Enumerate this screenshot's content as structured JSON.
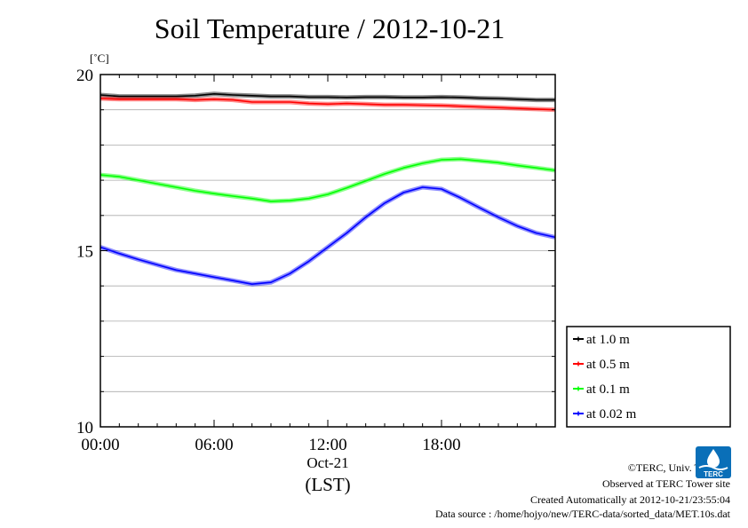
{
  "chart_data": {
    "type": "line",
    "title": "Soil Temperature / 2012-10-21",
    "ylabel": "[˚C]",
    "ylim": [
      10,
      20
    ],
    "yticks": [
      10,
      15,
      20
    ],
    "xlim": [
      0,
      24
    ],
    "xtick_labels": [
      "00:00",
      "06:00",
      "12:00",
      "18:00"
    ],
    "xtick_values": [
      0,
      6,
      12,
      18
    ],
    "x_date_label": "Oct-21",
    "x_unit_label": "(LST)",
    "grid": true,
    "legend_position": "bottom-right",
    "series": [
      {
        "name": "at 1.0 m",
        "color": "#000000",
        "x": [
          0,
          1,
          2,
          3,
          4,
          5,
          6,
          7,
          8,
          9,
          10,
          11,
          12,
          13,
          14,
          15,
          16,
          17,
          18,
          19,
          20,
          21,
          22,
          23,
          24
        ],
        "values": [
          19.42,
          19.38,
          19.38,
          19.38,
          19.38,
          19.4,
          19.45,
          19.42,
          19.4,
          19.38,
          19.38,
          19.36,
          19.36,
          19.35,
          19.36,
          19.36,
          19.35,
          19.35,
          19.36,
          19.35,
          19.33,
          19.32,
          19.3,
          19.28,
          19.28
        ]
      },
      {
        "name": "at 0.5 m",
        "color": "#ff0000",
        "x": [
          0,
          1,
          2,
          3,
          4,
          5,
          6,
          7,
          8,
          9,
          10,
          11,
          12,
          13,
          14,
          15,
          16,
          17,
          18,
          19,
          20,
          21,
          22,
          23,
          24
        ],
        "values": [
          19.32,
          19.3,
          19.3,
          19.3,
          19.3,
          19.28,
          19.3,
          19.28,
          19.22,
          19.22,
          19.22,
          19.18,
          19.16,
          19.18,
          19.16,
          19.14,
          19.14,
          19.13,
          19.12,
          19.1,
          19.08,
          19.06,
          19.04,
          19.02,
          19.0
        ]
      },
      {
        "name": "at 0.1 m",
        "color": "#00ff00",
        "x": [
          0,
          1,
          2,
          3,
          4,
          5,
          6,
          7,
          8,
          9,
          10,
          11,
          12,
          13,
          14,
          15,
          16,
          17,
          18,
          19,
          20,
          21,
          22,
          23,
          24
        ],
        "values": [
          17.15,
          17.1,
          17.0,
          16.9,
          16.8,
          16.7,
          16.62,
          16.55,
          16.48,
          16.4,
          16.42,
          16.48,
          16.6,
          16.78,
          16.98,
          17.18,
          17.35,
          17.48,
          17.58,
          17.6,
          17.55,
          17.5,
          17.42,
          17.35,
          17.28
        ]
      },
      {
        "name": "at 0.02 m",
        "color": "#0000ff",
        "x": [
          0,
          1,
          2,
          3,
          4,
          5,
          6,
          7,
          8,
          9,
          10,
          11,
          12,
          13,
          14,
          15,
          16,
          17,
          18,
          19,
          20,
          21,
          22,
          23,
          24
        ],
        "values": [
          15.1,
          14.92,
          14.75,
          14.6,
          14.45,
          14.35,
          14.25,
          14.15,
          14.05,
          14.1,
          14.35,
          14.7,
          15.1,
          15.5,
          15.95,
          16.35,
          16.65,
          16.8,
          16.75,
          16.5,
          16.22,
          15.95,
          15.7,
          15.5,
          15.38
        ]
      }
    ]
  },
  "footer": {
    "copyright": "©TERC, Univ. Tsukuba",
    "observed": "Observed at TERC Tower site",
    "created": "Created Automatically at 2012-10-21/23:55:04",
    "source": "Data source : /home/hojyo/new/TERC-data/sorted_data/MET.10s.dat",
    "logo_text": "TERC",
    "logo_color": "#0a6fb8"
  }
}
